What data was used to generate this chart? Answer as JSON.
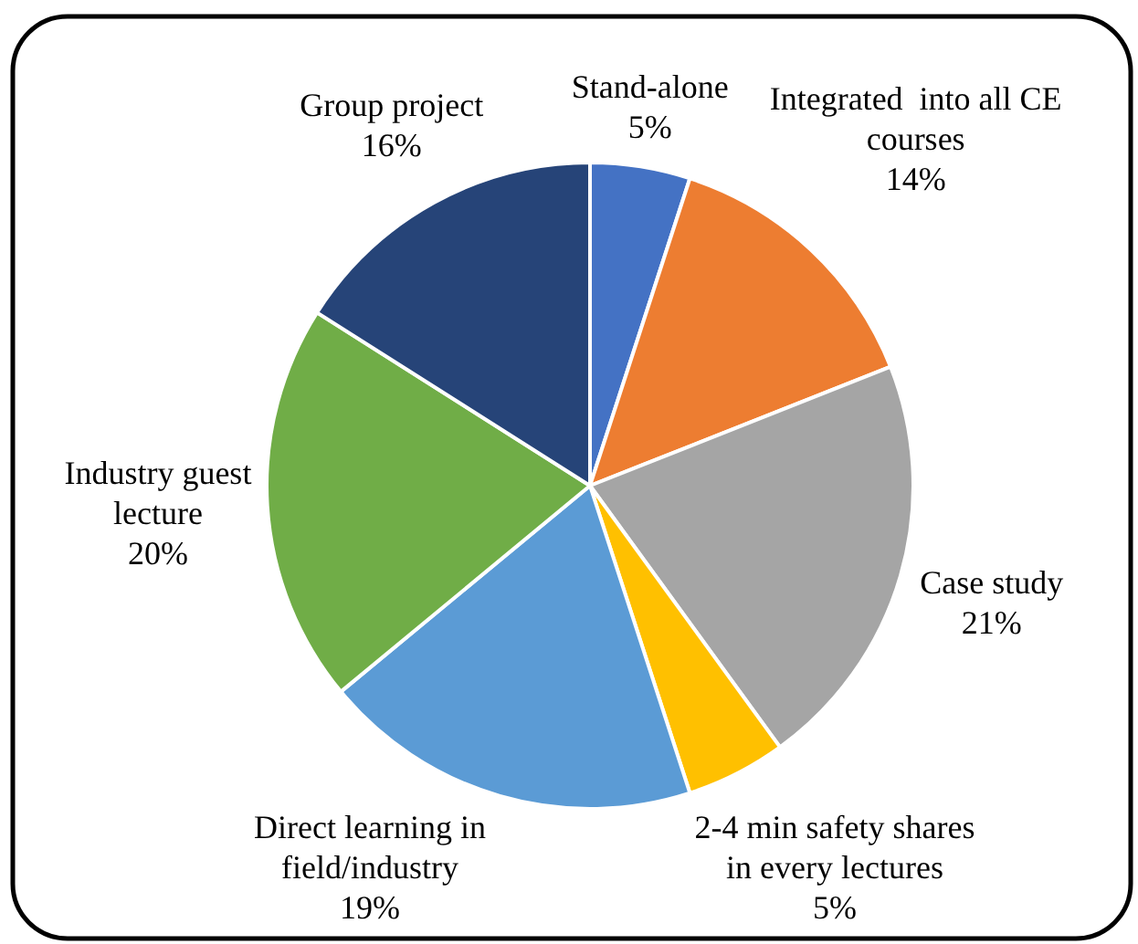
{
  "chart_data": {
    "type": "pie",
    "categories": [
      "Stand-alone",
      "Integrated  into all CE courses",
      "Case study",
      "2-4 min safety shares in every lectures",
      "Direct learning in field/industry",
      "Industry guest lecture",
      "Group project"
    ],
    "values": [
      5,
      14,
      21,
      5,
      19,
      20,
      16
    ],
    "colors": [
      "#4472c4",
      "#ed7d31",
      "#a5a5a5",
      "#ffc000",
      "#5b9bd5",
      "#70ad47",
      "#264478"
    ],
    "value_labels": [
      "5%",
      "14%",
      "21%",
      "5%",
      "19%",
      "20%",
      "16%"
    ]
  }
}
